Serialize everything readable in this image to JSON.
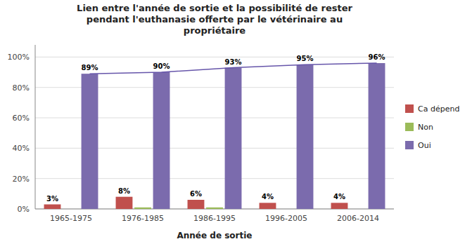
{
  "chart_data": {
    "type": "bar",
    "title": "Lien entre l'année de sortie et la possibilité de rester\npendant l'euthanasie offerte par le vétérinaire au\npropriétaire",
    "x_label": "Année de sortie",
    "categories": [
      "1965-1975",
      "1976-1985",
      "1986-1995",
      "1996-2005",
      "2006-2014"
    ],
    "series": [
      {
        "name": "Ca dépend",
        "color": "#C0504D",
        "values": [
          3,
          8,
          6,
          4,
          4
        ],
        "data_labels": true,
        "value_labels": [
          "3%",
          "8%",
          "6%",
          "4%",
          "4%"
        ]
      },
      {
        "name": "Non",
        "color": "#9BBB59",
        "values": [
          0,
          1,
          1,
          0,
          0
        ]
      },
      {
        "name": "Oui",
        "color": "#7B6BAD",
        "values": [
          89,
          90,
          93,
          95,
          96
        ],
        "data_labels": true,
        "value_labels": [
          "89%",
          "90%",
          "93%",
          "95%",
          "96%"
        ]
      },
      {
        "type": "line",
        "color": "#6655AA",
        "values": [
          89,
          90,
          93,
          95,
          96
        ]
      }
    ],
    "ylim": [
      0,
      108
    ],
    "yticks": [
      {
        "value": 0,
        "label": "0%"
      },
      {
        "value": 20,
        "label": "20%"
      },
      {
        "value": 40,
        "label": "40%"
      },
      {
        "value": 60,
        "label": "60%"
      },
      {
        "value": 80,
        "label": "80%"
      },
      {
        "value": 100,
        "label": "100%"
      }
    ],
    "grid": true,
    "legend": "right"
  }
}
